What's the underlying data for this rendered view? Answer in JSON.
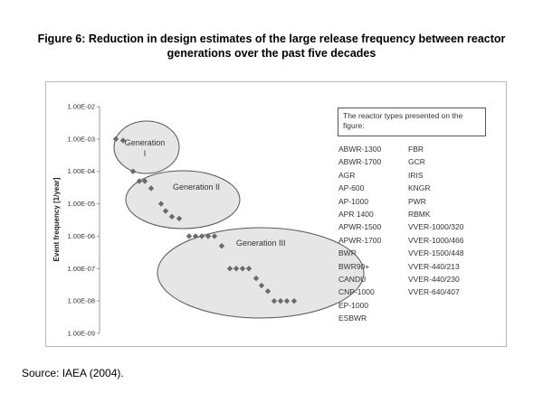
{
  "figure": {
    "title": "Figure 6: Reduction in design estimates of the large release frequency between reactor generations over the past five decades",
    "source": "Source: IAEA (2004)."
  },
  "chart_data": {
    "type": "scatter",
    "title": "",
    "xlabel": "",
    "ylabel": "Event frequency [1/year]",
    "y_scale": "log",
    "ylim": [
      1e-09,
      0.01
    ],
    "ytick_labels": [
      "1.00E-02",
      "1.00E-03",
      "1.00E-04",
      "1.00E-05",
      "1.00E-06",
      "1.00E-07",
      "1.00E-08",
      "1.00E-09"
    ],
    "grid": false,
    "series": [
      {
        "values": [
          0.001,
          0.0009,
          0.0001,
          5e-05,
          5e-05,
          3e-05,
          1e-05,
          6e-06,
          4e-06,
          3.5e-06,
          1e-06,
          1e-06,
          1e-06,
          1e-06,
          1e-06,
          5e-07,
          1e-07,
          1e-07,
          1e-07,
          1e-07,
          5e-08,
          3e-08,
          2e-08,
          1e-08,
          1e-08,
          1e-08,
          1e-08
        ]
      }
    ],
    "groups": [
      {
        "label": "Generation I"
      },
      {
        "label": "Generation II"
      },
      {
        "label": "Generation III"
      }
    ],
    "legend_title": "The reactor types presented on the figure:",
    "legend_col1": [
      "ABWR-1300",
      "ABWR-1700",
      "AGR",
      "AP-600",
      "AP-1000",
      "APR 1400",
      "APWR-1500",
      "APWR-1700",
      "BWR",
      "BWR90+",
      "CANDU",
      "CNP-1000",
      "EP-1000",
      "ESBWR"
    ],
    "legend_col2": [
      "FBR",
      "GCR",
      "IRIS",
      "KNGR",
      "PWR",
      "RBMK",
      "VVER-1000/320",
      "VVER-1000/466",
      "VVER-1500/448",
      "VVER-440/213",
      "VVER-440/230",
      "VVER-640/407"
    ],
    "colors": {
      "marker": "#6a6a6a",
      "ellipse_fill": "#d9d9d9",
      "ellipse_stroke": "#555555",
      "axis": "#999999"
    }
  }
}
